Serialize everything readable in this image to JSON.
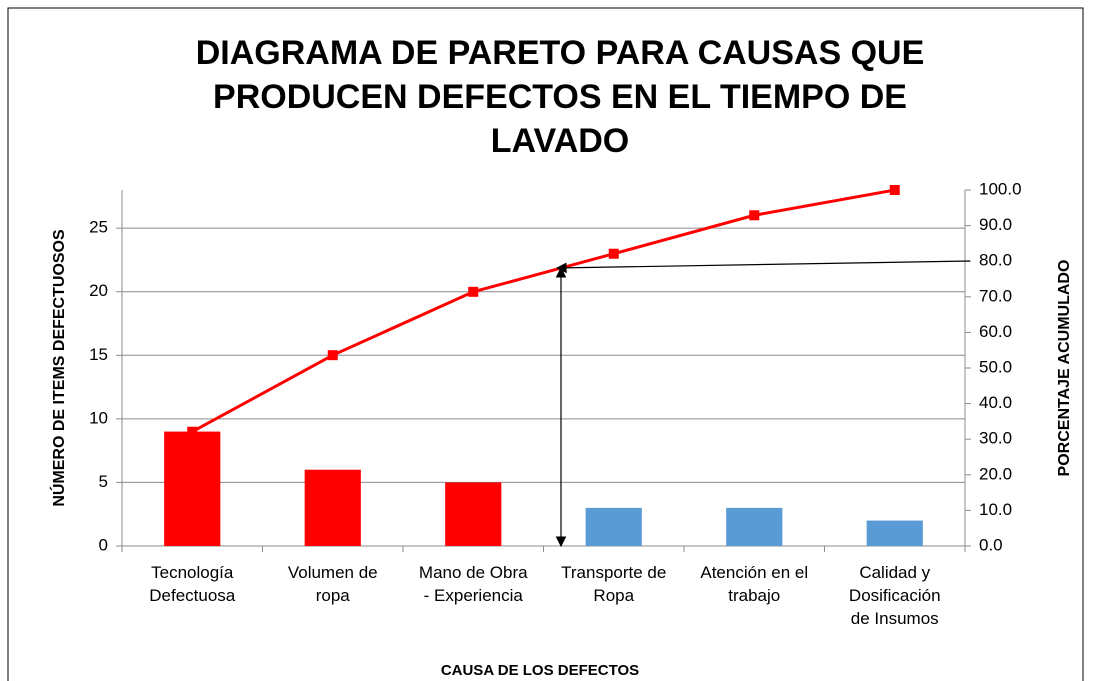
{
  "chart_data": {
    "type": "pareto",
    "title": "DIAGRAMA DE PARETO PARA CAUSAS QUE\nPRODUCEN DEFECTOS EN EL TIEMPO DE\nLAVADO",
    "x_label": "CAUSA DE LOS DEFECTOS",
    "y_label": "NÚMERO DE ITEMS DEFECTUOSOS",
    "y2_label": "PORCENTAJE ACUMULADO",
    "categories": [
      "Tecnología\nDefectuosa",
      "Volumen de\nropa",
      "Mano de Obra\n- Experiencia",
      "Transporte de\nRopa",
      "Atención en el\ntrabajo",
      "Calidad y\nDosificación\nde Insumos"
    ],
    "values": [
      9,
      6,
      5,
      3,
      3,
      2
    ],
    "bar_colors": [
      "#ff0000",
      "#ff0000",
      "#ff0000",
      "#5b9bd5",
      "#5b9bd5",
      "#5b9bd5"
    ],
    "line": {
      "values": [
        32.1,
        53.6,
        71.4,
        82.1,
        92.9,
        100.0
      ],
      "color": "#ff0000",
      "axis": "y2"
    },
    "ylim": [
      0,
      28
    ],
    "yticks": [
      0,
      5,
      10,
      15,
      20,
      25
    ],
    "y2lim": [
      0,
      100
    ],
    "y2ticks": [
      {
        "value": 0,
        "label": "0.0"
      },
      {
        "value": 10,
        "label": "10.0"
      },
      {
        "value": 20,
        "label": "20.0"
      },
      {
        "value": 30,
        "label": "30.0"
      },
      {
        "value": 40,
        "label": "40.0"
      },
      {
        "value": 50,
        "label": "50.0"
      },
      {
        "value": 60,
        "label": "60.0"
      },
      {
        "value": 70,
        "label": "70.0"
      },
      {
        "value": 80,
        "label": "80.0"
      },
      {
        "value": 90,
        "label": "90.0"
      },
      {
        "value": 100,
        "label": "100.0"
      }
    ],
    "grid": true
  }
}
